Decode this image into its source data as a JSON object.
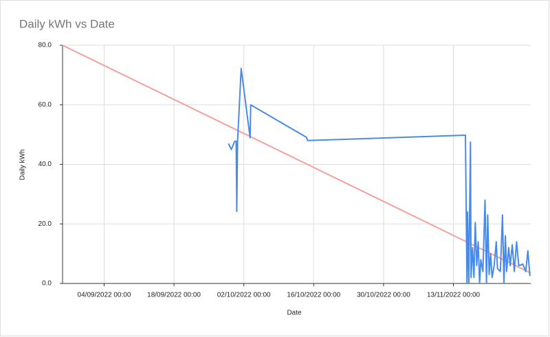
{
  "chart_data": {
    "type": "line",
    "title": "Daily kWh vs Date",
    "x_label": "Date",
    "y_label": "Daily kWh",
    "xlim": [
      "2022-08-26 16:00",
      "2022-11-28 12:00"
    ],
    "xticks": [
      {
        "value": "2022-09-04 00:00",
        "label": "04/09/2022 00:00"
      },
      {
        "value": "2022-09-18 00:00",
        "label": "18/09/2022 00:00"
      },
      {
        "value": "2022-10-02 00:00",
        "label": "02/10/2022 00:00"
      },
      {
        "value": "2022-10-16 00:00",
        "label": "16/10/2022 00:00"
      },
      {
        "value": "2022-10-30 00:00",
        "label": "30/10/2022 00:00"
      },
      {
        "value": "2022-11-13 00:00",
        "label": "13/11/2022 00:00"
      }
    ],
    "ylim": [
      0,
      80
    ],
    "yticks": [
      {
        "value": 0,
        "label": "0.0"
      },
      {
        "value": 20,
        "label": "20.0"
      },
      {
        "value": 40,
        "label": "40.0"
      },
      {
        "value": 60,
        "label": "60.0"
      },
      {
        "value": 80,
        "label": "80.0"
      }
    ],
    "grid": true,
    "series": [
      {
        "color": "#f4a09c",
        "x": [
          "2022-08-26 16:00",
          "2022-11-28 12:00"
        ],
        "values": [
          80,
          3.5
        ]
      },
      {
        "color": "#4a8ae6",
        "x": [
          "2022-09-28 22:00",
          "2022-09-29 12:00",
          "2022-09-30 04:00",
          "2022-09-30 11:00",
          "2022-09-30 14:00",
          "2022-09-30 18:00",
          "2022-10-01 11:00",
          "2022-10-03 06:00",
          "2022-10-03 09:00",
          "2022-10-14 13:00",
          "2022-10-14 19:00",
          "2022-11-15 10:00",
          "2022-11-15 17:00",
          "2022-11-15 20:00",
          "2022-11-16 02:00",
          "2022-11-16 10:00",
          "2022-11-16 13:00",
          "2022-11-16 20:00",
          "2022-11-17 03:00",
          "2022-11-17 09:00",
          "2022-11-17 16:00",
          "2022-11-17 23:00",
          "2022-11-18 06:00",
          "2022-11-18 12:00",
          "2022-11-18 22:00",
          "2022-11-19 08:00",
          "2022-11-19 15:00",
          "2022-11-19 21:00",
          "2022-11-20 04:00",
          "2022-11-20 11:00",
          "2022-11-20 18:00",
          "2022-11-21 04:00",
          "2022-11-21 14:00",
          "2022-11-21 20:00",
          "2022-11-22 10:00",
          "2022-11-22 20:00",
          "2022-11-23 03:00",
          "2022-11-23 10:00",
          "2022-11-23 16:00",
          "2022-11-24 02:00",
          "2022-11-24 09:00",
          "2022-11-24 19:00",
          "2022-11-25 05:00",
          "2022-11-25 16:00",
          "2022-11-26 02:00",
          "2022-11-26 22:00",
          "2022-11-27 12:00",
          "2022-11-27 22:00",
          "2022-11-28 08:00"
        ],
        "values": [
          47,
          45,
          47.8,
          47.8,
          24.2,
          48,
          72.2,
          48.9,
          60,
          49.1,
          48,
          49.8,
          0,
          24,
          0,
          47.5,
          2,
          12,
          2,
          20.5,
          6,
          14,
          0,
          8,
          4,
          28,
          0,
          23,
          3,
          10,
          2,
          6,
          14,
          5,
          4,
          23,
          0,
          16,
          4,
          12,
          6,
          13,
          4,
          14,
          6,
          6.5,
          4,
          11,
          2.5
        ]
      }
    ]
  }
}
